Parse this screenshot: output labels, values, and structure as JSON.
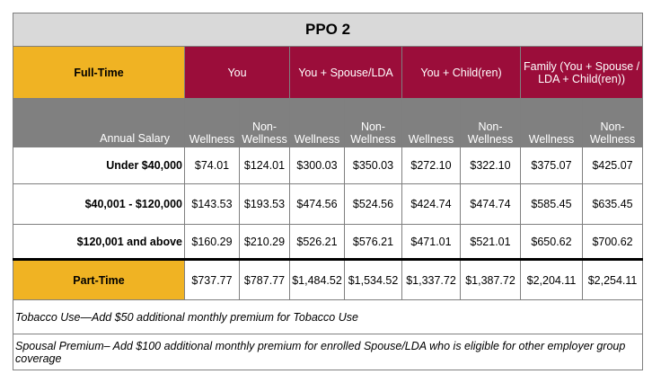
{
  "title": "PPO 2",
  "header": {
    "label": "Full-Time",
    "groups": [
      "You",
      "You + Spouse/LDA",
      "You + Child(ren)",
      "Family (You + Spouse / LDA + Child(ren))"
    ]
  },
  "subheader": {
    "label": "Annual Salary",
    "columns": [
      "Wellness",
      "Non-Wellness",
      "Wellness",
      "Non-Wellness",
      "Wellness",
      "Non-Wellness",
      "Wellness",
      "Non-Wellness"
    ]
  },
  "rows": [
    {
      "label": "Under $40,000",
      "cells": [
        "$74.01",
        "$124.01",
        "$300.03",
        "$350.03",
        "$272.10",
        "$322.10",
        "$375.07",
        "$425.07"
      ]
    },
    {
      "label": "$40,001 - $120,000",
      "cells": [
        "$143.53",
        "$193.53",
        "$474.56",
        "$524.56",
        "$424.74",
        "$474.74",
        "$585.45",
        "$635.45"
      ]
    },
    {
      "label": "$120,001 and above",
      "cells": [
        "$160.29",
        "$210.29",
        "$526.21",
        "$576.21",
        "$471.01",
        "$521.01",
        "$650.62",
        "$700.62"
      ]
    }
  ],
  "part_time": {
    "label": "Part-Time",
    "cells": [
      "$737.77",
      "$787.77",
      "$1,484.52",
      "$1,534.52",
      "$1,337.72",
      "$1,387.72",
      "$2,204.11",
      "$2,254.11"
    ]
  },
  "notes": [
    "Tobacco Use—Add $50 additional monthly premium for Tobacco Use",
    "Spousal Premium– Add $100 additional monthly premium for enrolled Spouse/LDA who is eligible for other employer group coverage"
  ]
}
